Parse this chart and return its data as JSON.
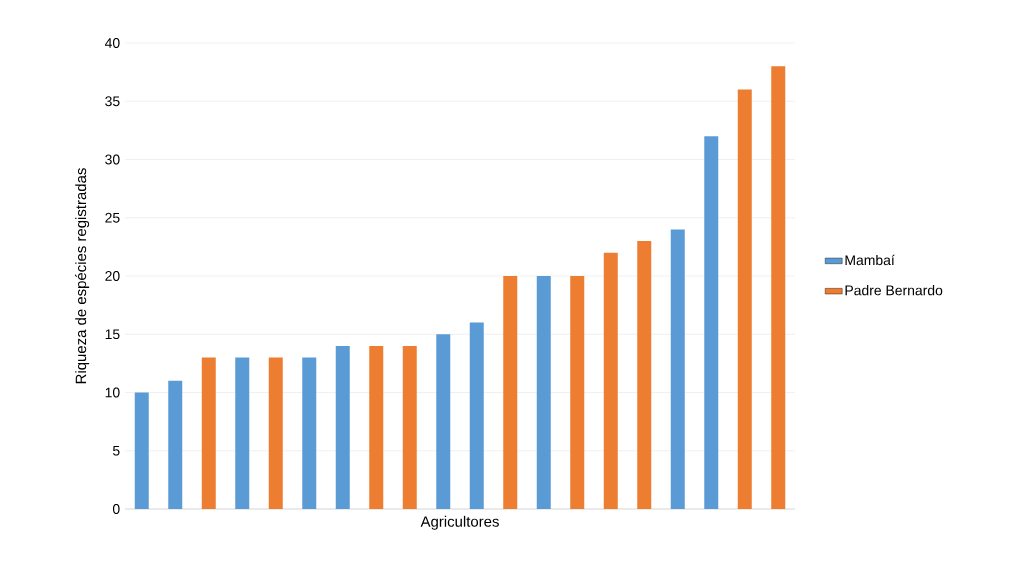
{
  "chart_data": {
    "type": "bar",
    "xlabel": "Agricultores",
    "ylabel": "Riqueza de espécies registradas",
    "categories": [
      null,
      null,
      null,
      null,
      null,
      null,
      null,
      null,
      null,
      null,
      null,
      null,
      null,
      null,
      null,
      null,
      null,
      null,
      null,
      null
    ],
    "series": [
      {
        "name": "Mambaí",
        "color": "#5b9bd5",
        "values": [
          10,
          11,
          null,
          13,
          null,
          13,
          14,
          null,
          null,
          15,
          16,
          null,
          20,
          null,
          null,
          null,
          24,
          32,
          null,
          null
        ]
      },
      {
        "name": "Padre Bernardo",
        "color": "#ed7d31",
        "values": [
          null,
          null,
          13,
          null,
          13,
          null,
          null,
          14,
          14,
          null,
          null,
          20,
          null,
          20,
          22,
          23,
          null,
          null,
          36,
          38
        ]
      }
    ],
    "ylim": [
      0,
      40
    ],
    "yticks": [
      0,
      5,
      10,
      15,
      20,
      25,
      30,
      35,
      40
    ],
    "grid": "y",
    "legend": "right"
  }
}
